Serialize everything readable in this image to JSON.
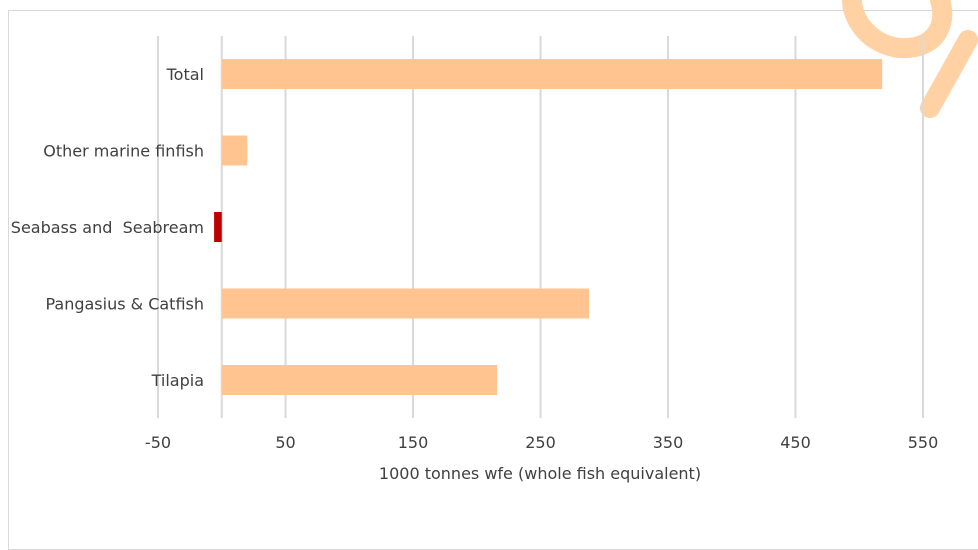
{
  "chart_data": {
    "type": "bar",
    "orientation": "horizontal",
    "categories": [
      "Total",
      "Other marine finfish",
      "Seabass and  Seabream",
      "Pangasius & Catfish",
      "Tilapia"
    ],
    "values": [
      518,
      20,
      -6,
      288,
      216
    ],
    "xlabel": "1000 tonnes wfe (whole fish equivalent)",
    "ylabel": "",
    "title": "",
    "xlim": [
      -50,
      600
    ],
    "xticks": [
      -50,
      50,
      150,
      250,
      350,
      450,
      550
    ],
    "grid": true,
    "colors": {
      "positive": "#ffc48f",
      "negative": "#c00000",
      "grid": "#d9d9d9",
      "text": "#404040",
      "decor": "#ffd1a3"
    }
  }
}
